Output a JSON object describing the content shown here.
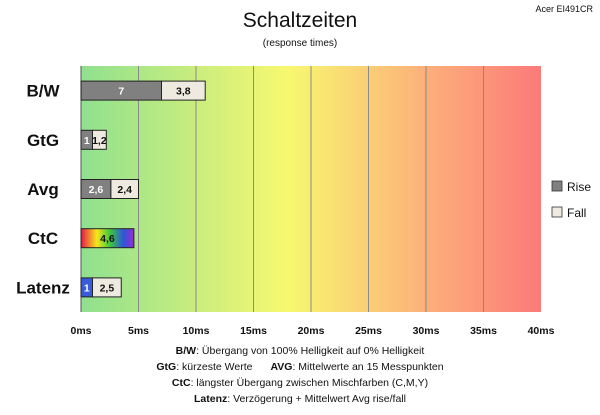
{
  "chart_data": {
    "type": "bar",
    "orientation": "horizontal",
    "stacked": true,
    "title": "Schaltzeiten",
    "subtitle": "(response times)",
    "model": "Acer EI491CR",
    "categories": [
      "B/W",
      "GtG",
      "Avg",
      "CtC",
      "Latenz"
    ],
    "series": [
      {
        "name": "Rise",
        "values": [
          7,
          1,
          2.6,
          4.6,
          1
        ],
        "labels": [
          "7",
          "1",
          "2,6",
          "4,6",
          "1"
        ]
      },
      {
        "name": "Fall",
        "values": [
          3.8,
          1.2,
          2.4,
          null,
          2.5
        ],
        "labels": [
          "3,8",
          "1,2",
          "2,4",
          "",
          "2,5"
        ]
      }
    ],
    "xlim": [
      0,
      40
    ],
    "xticks": [
      0,
      5,
      10,
      15,
      20,
      25,
      30,
      35,
      40
    ],
    "xtick_labels": [
      "0ms",
      "5ms",
      "10ms",
      "15ms",
      "20ms",
      "25ms",
      "30ms",
      "35ms",
      "40ms"
    ],
    "grid": "vertical",
    "legend": "right",
    "colors": {
      "rise": "#808080",
      "fall": "#eeeae0",
      "latenz_rise": "#3a5bd9",
      "ctc_gradient": [
        "#e8174a",
        "#f6e81a",
        "#3cc83c",
        "#2b56d9",
        "#9b2bd3"
      ],
      "background_gradient": [
        "#8fe08f",
        "#f8f870",
        "#fcb07a",
        "#fb7a7a"
      ]
    },
    "notes": [
      {
        "key": "B/W",
        "text": ":  Übergang von 100% Helligkeit auf 0% Helligkeit"
      },
      {
        "key": "GtG",
        "text": ": kürzeste  Werte",
        "key2": "AVG",
        "text2": ": Mittelwerte  an 15 Messpunkten"
      },
      {
        "key": "CtC",
        "text": ": längster Übergang  zwischen Mischfarben  (C,M,Y)"
      },
      {
        "key": "Latenz",
        "text": ": Verzögerung  + Mittelwert Avg rise/fall"
      }
    ]
  }
}
